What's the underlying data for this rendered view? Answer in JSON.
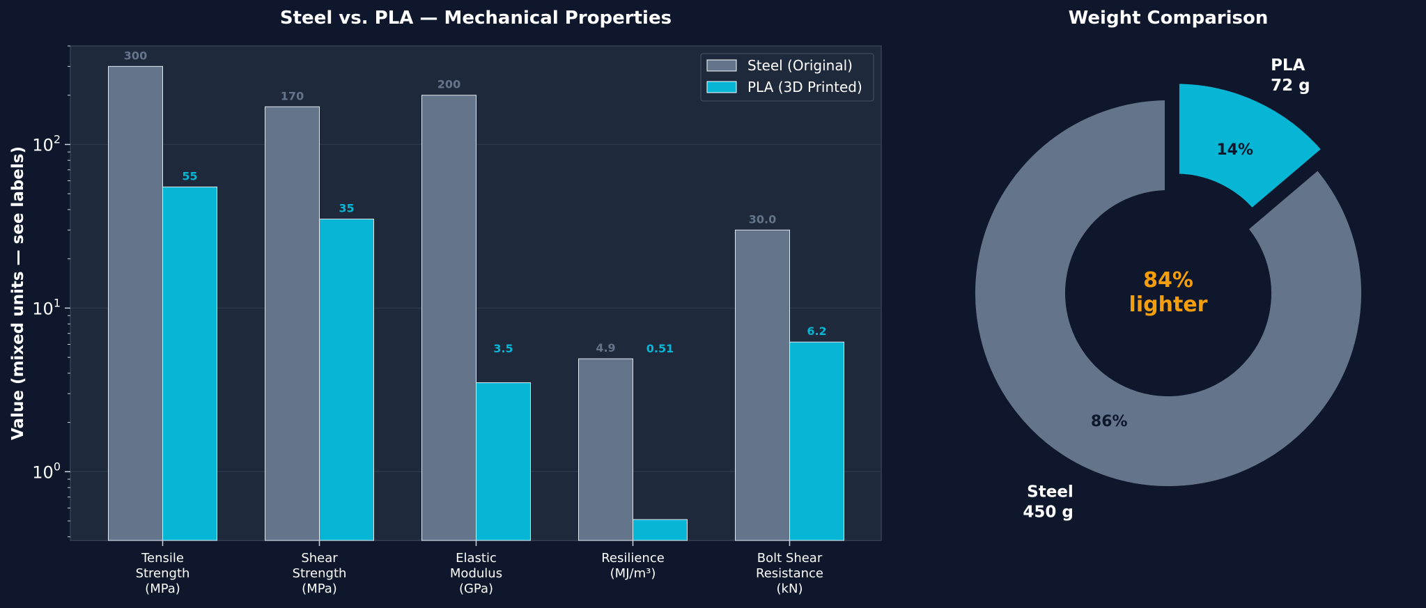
{
  "colors": {
    "background": "#0e172b",
    "plot_background": "#1e293b",
    "steel": "#64748b",
    "pla": "#06b6d4",
    "accent": "#f59e0b",
    "text": "#ffffff"
  },
  "chart_data": [
    {
      "type": "bar",
      "title": "Steel vs. PLA — Mechanical Properties",
      "ylabel": "Value (mixed units — see labels)",
      "xlabel": "",
      "yscale": "log",
      "ylim": [
        0.38,
        400
      ],
      "grid": true,
      "legend_position": "top-right",
      "categories": [
        [
          "Tensile",
          "Strength",
          "(MPa)"
        ],
        [
          "Shear",
          "Strength",
          "(MPa)"
        ],
        [
          "Elastic",
          "Modulus",
          "(GPa)"
        ],
        [
          "Resilience",
          "(MJ/m³)"
        ],
        [
          "Bolt Shear",
          "Resistance",
          "(kN)"
        ]
      ],
      "y_ticks": [
        {
          "value": 1,
          "base": "10",
          "exp": "0"
        },
        {
          "value": 10,
          "base": "10",
          "exp": "1"
        },
        {
          "value": 100,
          "base": "10",
          "exp": "2"
        }
      ],
      "series": [
        {
          "name": "Steel (Original)",
          "values": [
            300,
            170,
            200,
            4.9,
            30.0
          ],
          "labels": [
            "300",
            "170",
            "200",
            "4.9",
            "30.0"
          ]
        },
        {
          "name": "PLA (3D Printed)",
          "values": [
            55,
            35,
            3.5,
            0.51,
            6.2
          ],
          "labels": [
            "55",
            "35",
            "3.5",
            "0.51",
            "6.2"
          ]
        }
      ]
    },
    {
      "type": "pie",
      "title": "Weight Comparison",
      "slices": [
        {
          "name": "Steel",
          "value": 450,
          "label": "450 g",
          "pct": "86%"
        },
        {
          "name": "PLA",
          "value": 72,
          "label": "72 g",
          "pct": "14%"
        }
      ],
      "center_text": [
        "84%",
        "lighter"
      ]
    }
  ]
}
